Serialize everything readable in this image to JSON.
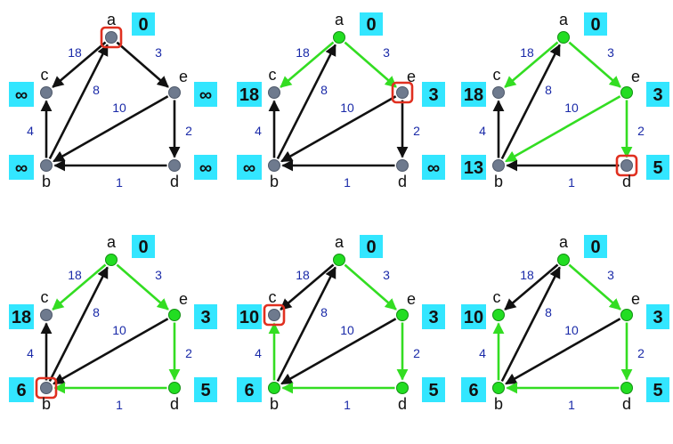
{
  "colors": {
    "tree_edge": "#33dd22",
    "other_edge": "#111111",
    "node_unvisited": "#6e7a8e",
    "node_visited": "#22dd22",
    "dist_box": "#33e6ff",
    "highlight": "#e03020",
    "weight_text": "#1a2aa8"
  },
  "nodes": [
    "a",
    "c",
    "e",
    "b",
    "d"
  ],
  "edges": [
    {
      "id": "a-c",
      "from": "a",
      "to": "c",
      "weight": "18"
    },
    {
      "id": "a-e",
      "from": "a",
      "to": "e",
      "weight": "3"
    },
    {
      "id": "b-a",
      "from": "b",
      "to": "a",
      "weight": "8"
    },
    {
      "id": "e-b",
      "from": "e",
      "to": "b",
      "weight": "10"
    },
    {
      "id": "b-c",
      "from": "b",
      "to": "c",
      "weight": "4"
    },
    {
      "id": "e-d",
      "from": "e",
      "to": "d",
      "weight": "2"
    },
    {
      "id": "d-b",
      "from": "d",
      "to": "b",
      "weight": "1"
    }
  ],
  "panels": [
    {
      "dist": {
        "a": "0",
        "c": "∞",
        "e": "∞",
        "b": "∞",
        "d": "∞"
      },
      "visited": [],
      "current": "a",
      "tree_edges": []
    },
    {
      "dist": {
        "a": "0",
        "c": "18",
        "e": "3",
        "b": "∞",
        "d": "∞"
      },
      "visited": [
        "a"
      ],
      "current": "e",
      "tree_edges": [
        "a-c",
        "a-e"
      ]
    },
    {
      "dist": {
        "a": "0",
        "c": "18",
        "e": "3",
        "b": "13",
        "d": "5"
      },
      "visited": [
        "a",
        "e"
      ],
      "current": "d",
      "tree_edges": [
        "a-c",
        "a-e",
        "e-b",
        "e-d"
      ]
    },
    {
      "dist": {
        "a": "0",
        "c": "18",
        "e": "3",
        "b": "6",
        "d": "5"
      },
      "visited": [
        "a",
        "e",
        "d"
      ],
      "current": "b",
      "tree_edges": [
        "a-c",
        "a-e",
        "e-d",
        "d-b"
      ]
    },
    {
      "dist": {
        "a": "0",
        "c": "10",
        "e": "3",
        "b": "6",
        "d": "5"
      },
      "visited": [
        "a",
        "e",
        "d",
        "b"
      ],
      "current": "c",
      "tree_edges": [
        "a-e",
        "e-d",
        "d-b",
        "b-c"
      ]
    },
    {
      "dist": {
        "a": "0",
        "c": "10",
        "e": "3",
        "b": "6",
        "d": "5"
      },
      "visited": [
        "a",
        "c",
        "e",
        "b",
        "d"
      ],
      "current": null,
      "tree_edges": [
        "a-e",
        "e-d",
        "d-b",
        "b-c"
      ]
    }
  ]
}
